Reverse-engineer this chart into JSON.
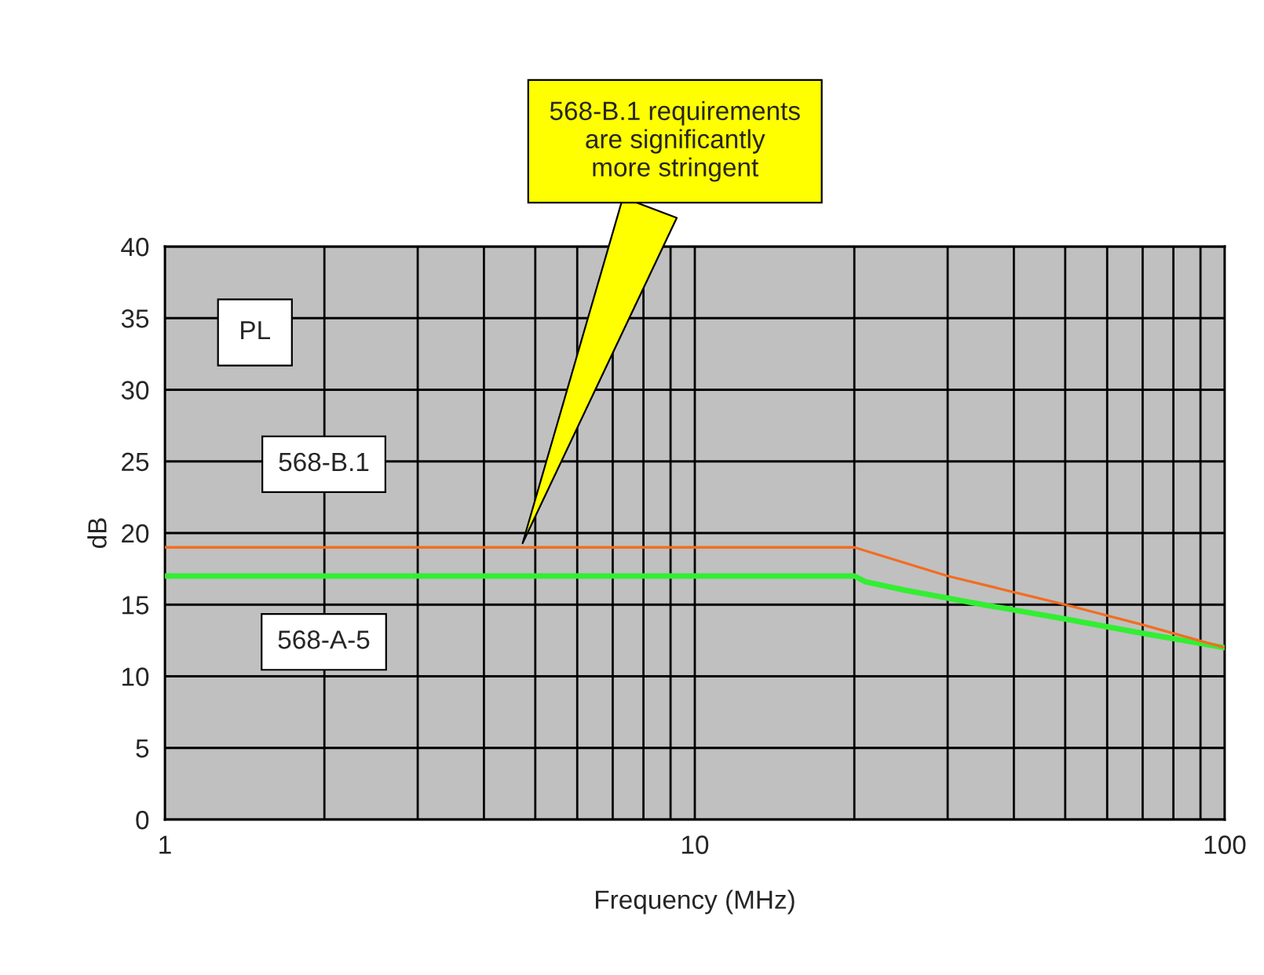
{
  "chart_data": {
    "type": "line",
    "xlabel": "Frequency (MHz)",
    "ylabel": "dB",
    "log": "x",
    "xlim": [
      1,
      100
    ],
    "xticks": [
      1,
      10,
      100
    ],
    "ylim": [
      0,
      40
    ],
    "yticks": [
      0,
      5,
      10,
      15,
      20,
      25,
      30,
      35,
      40
    ],
    "grid": true,
    "legend": false,
    "series": [
      {
        "name": "568-B.1",
        "color": "#f26d21",
        "x": [
          1,
          20,
          30,
          50,
          70,
          100
        ],
        "values": [
          19,
          19,
          17,
          15,
          13.6,
          12
        ]
      },
      {
        "name": "568-A-5",
        "color": "#33ee33",
        "x": [
          1,
          20,
          21,
          25,
          35,
          50,
          70,
          100
        ],
        "values": [
          17,
          17,
          16.6,
          16,
          15,
          14,
          13,
          12
        ]
      }
    ],
    "annotations": [
      "PL",
      {
        "text": "568-B.1 requirements\nare significantly\nmore stringent",
        "x": 4.7,
        "y": 19
      }
    ]
  }
}
